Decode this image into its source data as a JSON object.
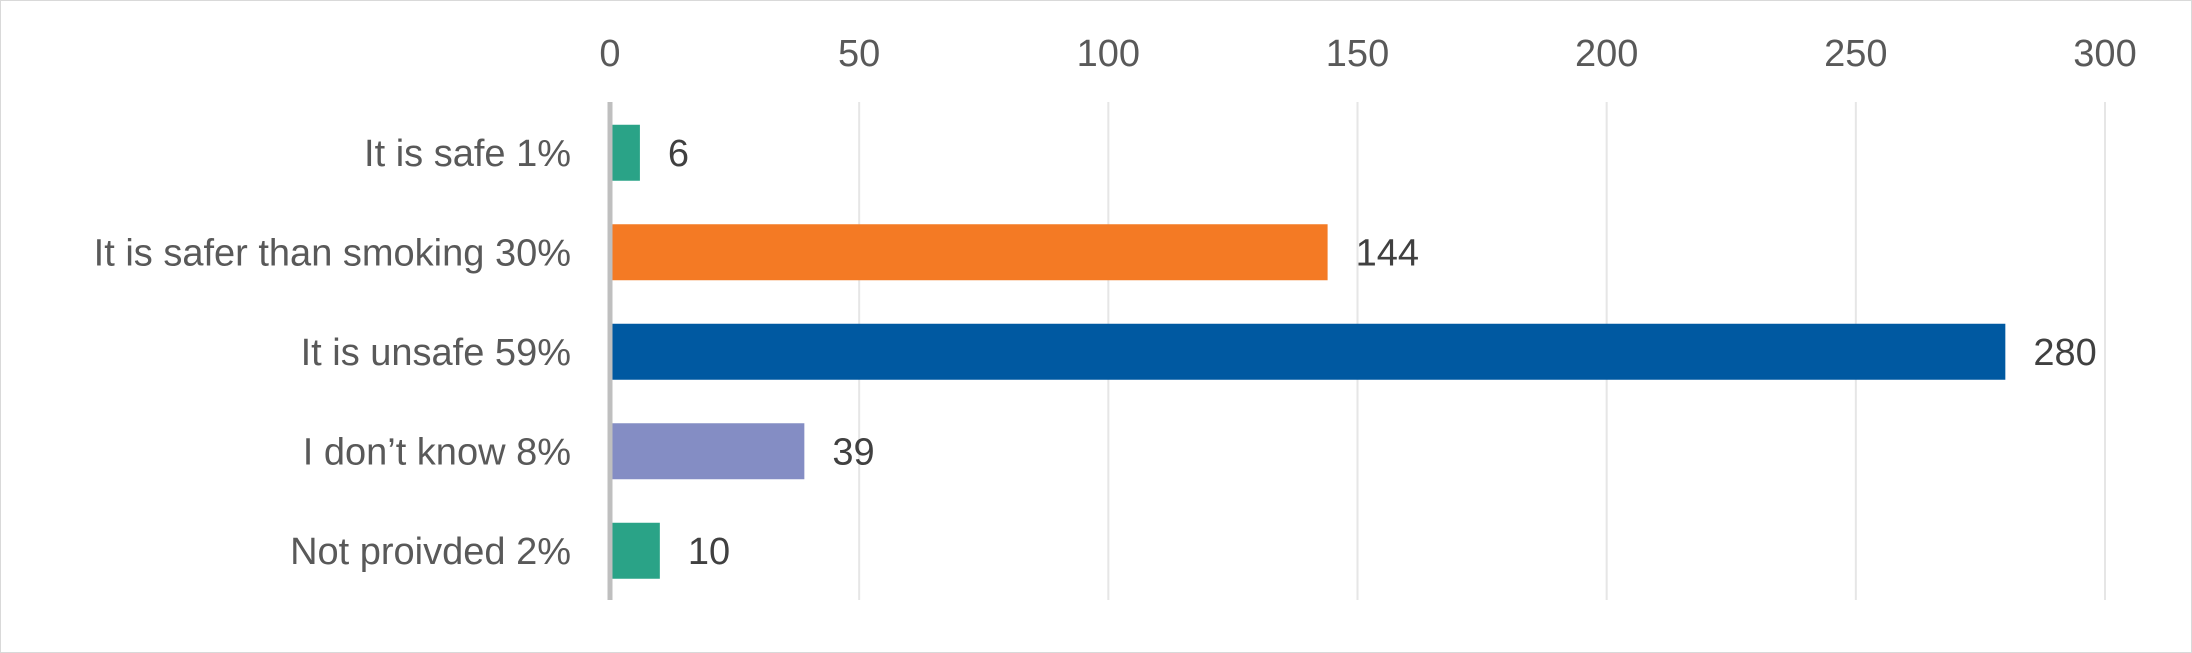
{
  "chart_data": {
    "type": "bar",
    "orientation": "horizontal",
    "categories": [
      "It is safe 1%",
      "It is safer than smoking 30%",
      "It is unsafe 59%",
      "I don’t know 8%",
      "Not proivded 2%"
    ],
    "values": [
      6,
      144,
      280,
      39,
      10
    ],
    "colors": [
      "#2aa387",
      "#f47a24",
      "#0059a1",
      "#848dc4",
      "#2aa387"
    ],
    "data_labels": [
      "6",
      "144",
      "280",
      "39",
      "10"
    ],
    "x_ticks": [
      "0",
      "50",
      "100",
      "150",
      "200",
      "250",
      "300"
    ],
    "xlim": [
      0,
      300
    ],
    "x_axis_position": "top",
    "grid": true,
    "title": "",
    "xlabel": "",
    "ylabel": ""
  }
}
